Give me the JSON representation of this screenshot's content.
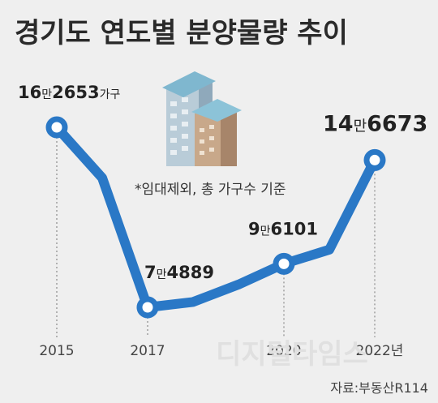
{
  "title": "경기도 연도별 분양물량 추이",
  "note": "*임대제외, 총 가구수 기준",
  "source": "자료:부동산R114",
  "watermark": "디지털타임스",
  "colors": {
    "line": "#2a78c6",
    "point_fill": "#ffffff",
    "guide": "#8a8a8a",
    "background": "#efefef"
  },
  "chart_data": {
    "type": "line",
    "x": [
      "2015",
      "2016",
      "2017",
      "2018",
      "2019",
      "2020",
      "2021",
      "2022"
    ],
    "xtick_labels": [
      "2015",
      "",
      "2017",
      "",
      "",
      "2020",
      "",
      "2022년"
    ],
    "values": [
      162653,
      138000,
      74889,
      77500,
      86000,
      96101,
      103000,
      146673
    ],
    "marked": [
      true,
      false,
      true,
      false,
      false,
      true,
      false,
      true
    ],
    "data_labels": [
      {
        "big": "16",
        "small": "만",
        "big2": "2653",
        "unit": "가구"
      },
      null,
      {
        "big": "7",
        "small": "만",
        "big2": "4889",
        "unit": ""
      },
      null,
      null,
      {
        "big": "9",
        "small": "만",
        "big2": "6101",
        "unit": ""
      },
      null,
      {
        "big": "14",
        "small": "만",
        "big2": "6673",
        "unit": ""
      }
    ],
    "grid": false
  }
}
